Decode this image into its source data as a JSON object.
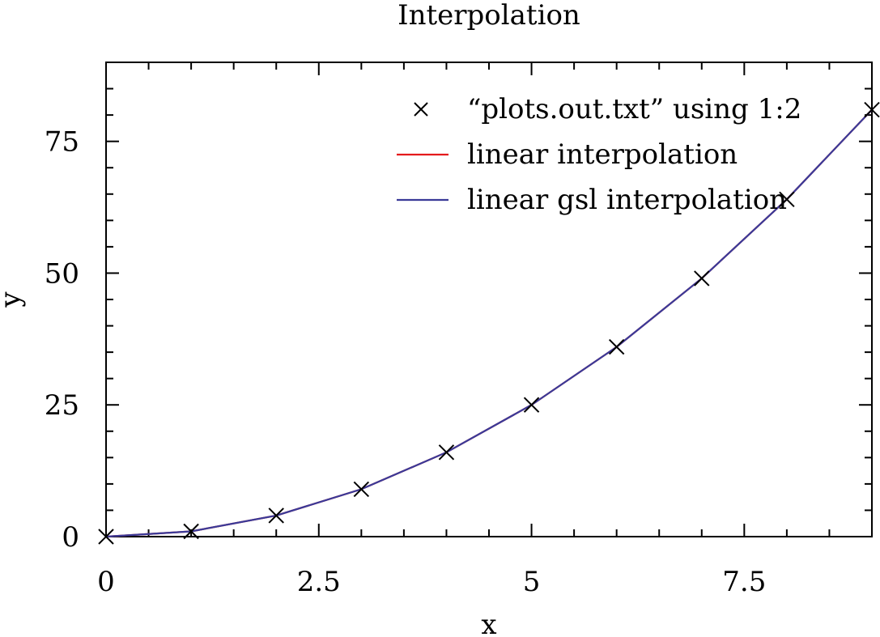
{
  "chart_data": {
    "type": "line",
    "title": "Interpolation",
    "xlabel": "x",
    "ylabel": "y",
    "xlim": [
      0,
      9
    ],
    "ylim": [
      0,
      90
    ],
    "xticks": [
      0,
      2.5,
      5,
      7.5
    ],
    "xtick_labels": [
      "0",
      "2.5",
      "5",
      "7.5"
    ],
    "yticks": [
      0,
      25,
      50,
      75
    ],
    "ytick_labels": [
      "0",
      "25",
      "50",
      "75"
    ],
    "grid": false,
    "legend_position": "top-right",
    "series": [
      {
        "name": "“plots.out.txt” using 1:2",
        "kind": "points",
        "marker": "cross",
        "color": "#000000",
        "x": [
          0,
          1,
          2,
          3,
          4,
          5,
          6,
          7,
          8,
          9
        ],
        "y": [
          0,
          1,
          4,
          9,
          16,
          25,
          36,
          49,
          64,
          81
        ]
      },
      {
        "name": "linear interpolation",
        "kind": "line",
        "color": "#e41a1c",
        "x": [
          0,
          1,
          2,
          3,
          4,
          5,
          6,
          7,
          8,
          9
        ],
        "y": [
          0,
          1,
          4,
          9,
          16,
          25,
          36,
          49,
          64,
          81
        ]
      },
      {
        "name": "linear gsl interpolation",
        "kind": "line",
        "color": "#3a3a98",
        "x": [
          0,
          1,
          2,
          3,
          4,
          5,
          6,
          7,
          8,
          9
        ],
        "y": [
          0,
          1,
          4,
          9,
          16,
          25,
          36,
          49,
          64,
          81
        ]
      }
    ]
  }
}
